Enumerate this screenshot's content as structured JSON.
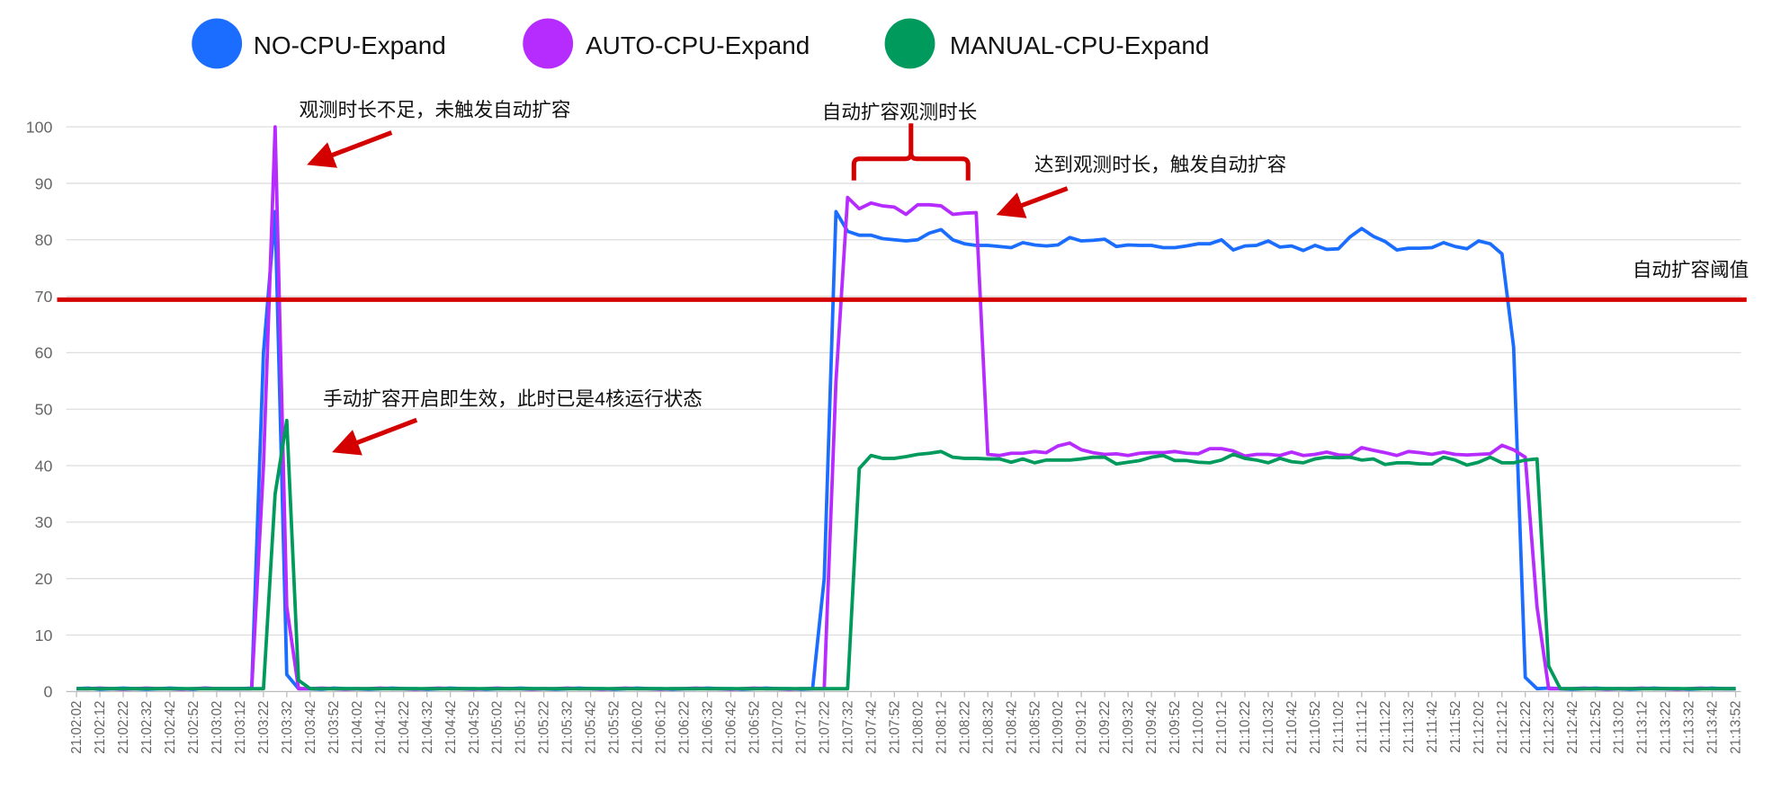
{
  "chart_data": {
    "type": "line",
    "title": "",
    "xlabel": "",
    "ylabel": "",
    "ylim": [
      0,
      100
    ],
    "yticks": [
      0,
      10,
      20,
      30,
      40,
      50,
      60,
      70,
      80,
      90,
      100
    ],
    "grid": true,
    "legend_position": "top",
    "sample_interval_seconds": 5,
    "x_start": "21:02:02",
    "x_tick_labels": [
      "21:02:02",
      "21:02:12",
      "21:02:22",
      "21:02:32",
      "21:02:42",
      "21:02:52",
      "21:03:02",
      "21:03:12",
      "21:03:22",
      "21:03:32",
      "21:03:42",
      "21:03:52",
      "21:04:02",
      "21:04:12",
      "21:04:22",
      "21:04:32",
      "21:04:42",
      "21:04:52",
      "21:05:02",
      "21:05:12",
      "21:05:22",
      "21:05:32",
      "21:05:42",
      "21:05:52",
      "21:06:02",
      "21:06:12",
      "21:06:22",
      "21:06:32",
      "21:06:42",
      "21:06:52",
      "21:07:02",
      "21:07:12",
      "21:07:22",
      "21:07:32",
      "21:07:42",
      "21:07:52",
      "21:08:02",
      "21:08:12",
      "21:08:22",
      "21:08:32",
      "21:08:42",
      "21:08:52",
      "21:09:02",
      "21:09:12",
      "21:09:22",
      "21:09:32",
      "21:09:42",
      "21:09:52",
      "21:10:02",
      "21:10:12",
      "21:10:22",
      "21:10:32",
      "21:10:42",
      "21:10:52",
      "21:11:02",
      "21:11:12",
      "21:11:22",
      "21:11:32",
      "21:11:42",
      "21:11:52",
      "21:12:02",
      "21:12:12",
      "21:12:22",
      "21:12:32",
      "21:12:42",
      "21:12:52",
      "21:13:02",
      "21:13:12",
      "21:13:22",
      "21:13:32",
      "21:13:42",
      "21:13:52"
    ],
    "series": [
      {
        "name": "NO-CPU-Expand",
        "color": "#1a6dff",
        "values": [
          0.5,
          0.6,
          0.4,
          0.5,
          0.6,
          0.5,
          0.4,
          0.5,
          0.6,
          0.5,
          0.4,
          0.6,
          0.5,
          0.5,
          0.5,
          0.6,
          60,
          85,
          3,
          0.5,
          0.5,
          0.4,
          0.6,
          0.5,
          0.5,
          0.4,
          0.5,
          0.6,
          0.5,
          0.5,
          0.4,
          0.5,
          0.6,
          0.5,
          0.5,
          0.4,
          0.5,
          0.5,
          0.6,
          0.5,
          0.5,
          0.4,
          0.5,
          0.6,
          0.5,
          0.5,
          0.4,
          0.5,
          0.6,
          0.5,
          0.5,
          0.4,
          0.5,
          0.5,
          0.6,
          0.5,
          0.5,
          0.4,
          0.5,
          0.6,
          0.5,
          0.5,
          0.4,
          0.5,
          20,
          85,
          81.5,
          80.8,
          80.8,
          80.2,
          80,
          79.8,
          80,
          81.2,
          81.8,
          80,
          79.3,
          79,
          79,
          78.8,
          78.6,
          79.5,
          79.1,
          78.9,
          79.1,
          80.4,
          79.8,
          79.9,
          80.1,
          78.8,
          79.1,
          79,
          79,
          78.6,
          78.6,
          78.9,
          79.3,
          79.3,
          80,
          78.2,
          78.9,
          79,
          79.8,
          78.7,
          78.9,
          78.1,
          79,
          78.3,
          78.4,
          80.5,
          82,
          80.6,
          79.7,
          78.2,
          78.5,
          78.5,
          78.6,
          79.5,
          78.8,
          78.4,
          79.8,
          79.3,
          77.5,
          61,
          2.5,
          0.5,
          0.6,
          0.5,
          0.4,
          0.5,
          0.6,
          0.5,
          0.5,
          0.4,
          0.5,
          0.6,
          0.5,
          0.5,
          0.4,
          0.5,
          0.6,
          0.5,
          0.5
        ]
      },
      {
        "name": "AUTO-CPU-Expand",
        "color": "#b62cff",
        "values": [
          0.5,
          0.5,
          0.6,
          0.5,
          0.4,
          0.5,
          0.6,
          0.5,
          0.5,
          0.4,
          0.5,
          0.6,
          0.5,
          0.5,
          0.5,
          0.5,
          40,
          100,
          15,
          0.5,
          0.5,
          0.6,
          0.5,
          0.4,
          0.5,
          0.5,
          0.6,
          0.5,
          0.5,
          0.4,
          0.5,
          0.6,
          0.5,
          0.5,
          0.4,
          0.5,
          0.6,
          0.5,
          0.5,
          0.4,
          0.5,
          0.5,
          0.6,
          0.5,
          0.5,
          0.4,
          0.5,
          0.6,
          0.5,
          0.5,
          0.4,
          0.5,
          0.5,
          0.6,
          0.5,
          0.5,
          0.4,
          0.5,
          0.6,
          0.5,
          0.5,
          0.4,
          0.5,
          0.5,
          0.5,
          55,
          87.5,
          85.5,
          86.5,
          86,
          85.8,
          84.5,
          86.2,
          86.2,
          86,
          84.5,
          84.7,
          84.8,
          42,
          41.8,
          42.2,
          42.2,
          42.5,
          42.3,
          43.5,
          44,
          42.8,
          42.3,
          42,
          42.1,
          41.8,
          42.2,
          42.3,
          42.3,
          42.5,
          42.2,
          42.1,
          43,
          43,
          42.6,
          41.7,
          42,
          42,
          41.8,
          42.4,
          41.8,
          42,
          42.4,
          41.9,
          41.8,
          43.2,
          42.7,
          42.3,
          41.8,
          42.5,
          42.3,
          42,
          42.4,
          42,
          41.9,
          42,
          42.1,
          43.6,
          42.8,
          41.5,
          15,
          0.5,
          0.5,
          0.5,
          0.6,
          0.5,
          0.4,
          0.5,
          0.5,
          0.6,
          0.5,
          0.5,
          0.4,
          0.5,
          0.6,
          0.5,
          0.5,
          0.5
        ]
      },
      {
        "name": "MANUAL-CPU-Expand",
        "color": "#009a5c",
        "values": [
          0.5,
          0.5,
          0.5,
          0.5,
          0.5,
          0.5,
          0.5,
          0.5,
          0.5,
          0.5,
          0.5,
          0.5,
          0.5,
          0.5,
          0.5,
          0.5,
          0.5,
          35,
          48,
          2,
          0.5,
          0.5,
          0.5,
          0.5,
          0.5,
          0.5,
          0.5,
          0.5,
          0.5,
          0.5,
          0.5,
          0.5,
          0.5,
          0.5,
          0.5,
          0.5,
          0.5,
          0.5,
          0.5,
          0.5,
          0.5,
          0.5,
          0.5,
          0.5,
          0.5,
          0.5,
          0.5,
          0.5,
          0.5,
          0.5,
          0.5,
          0.5,
          0.5,
          0.5,
          0.5,
          0.5,
          0.5,
          0.5,
          0.5,
          0.5,
          0.5,
          0.5,
          0.5,
          0.5,
          0.5,
          0.5,
          0.5,
          39.5,
          41.8,
          41.3,
          41.3,
          41.6,
          42,
          42.2,
          42.5,
          41.5,
          41.3,
          41.3,
          41.2,
          41.2,
          40.6,
          41.2,
          40.5,
          41,
          41,
          41,
          41.2,
          41.5,
          41.5,
          40.3,
          40.6,
          40.9,
          41.5,
          41.8,
          40.9,
          40.9,
          40.6,
          40.5,
          41,
          42,
          41.3,
          41,
          40.5,
          41.3,
          40.7,
          40.5,
          41.2,
          41.5,
          41.4,
          41.5,
          41,
          41.2,
          40.2,
          40.5,
          40.5,
          40.3,
          40.3,
          41.5,
          41,
          40.1,
          40.6,
          41.5,
          40.5,
          40.5,
          41,
          41.2,
          4.5,
          0.5,
          0.5,
          0.5,
          0.5,
          0.5,
          0.5,
          0.5,
          0.5,
          0.5,
          0.5,
          0.5,
          0.5,
          0.5,
          0.5,
          0.5,
          0.5
        ]
      }
    ],
    "threshold": {
      "value": 70,
      "label": "自动扩容阈值",
      "color": "#d40000"
    },
    "annotations": {
      "insufficient": "观测时长不足，未触发自动扩容",
      "observe_window": "自动扩容观测时长",
      "reached": "达到观测时长，触发自动扩容",
      "manual": "手动扩容开启即生效，此时已是4核运行状态"
    }
  }
}
